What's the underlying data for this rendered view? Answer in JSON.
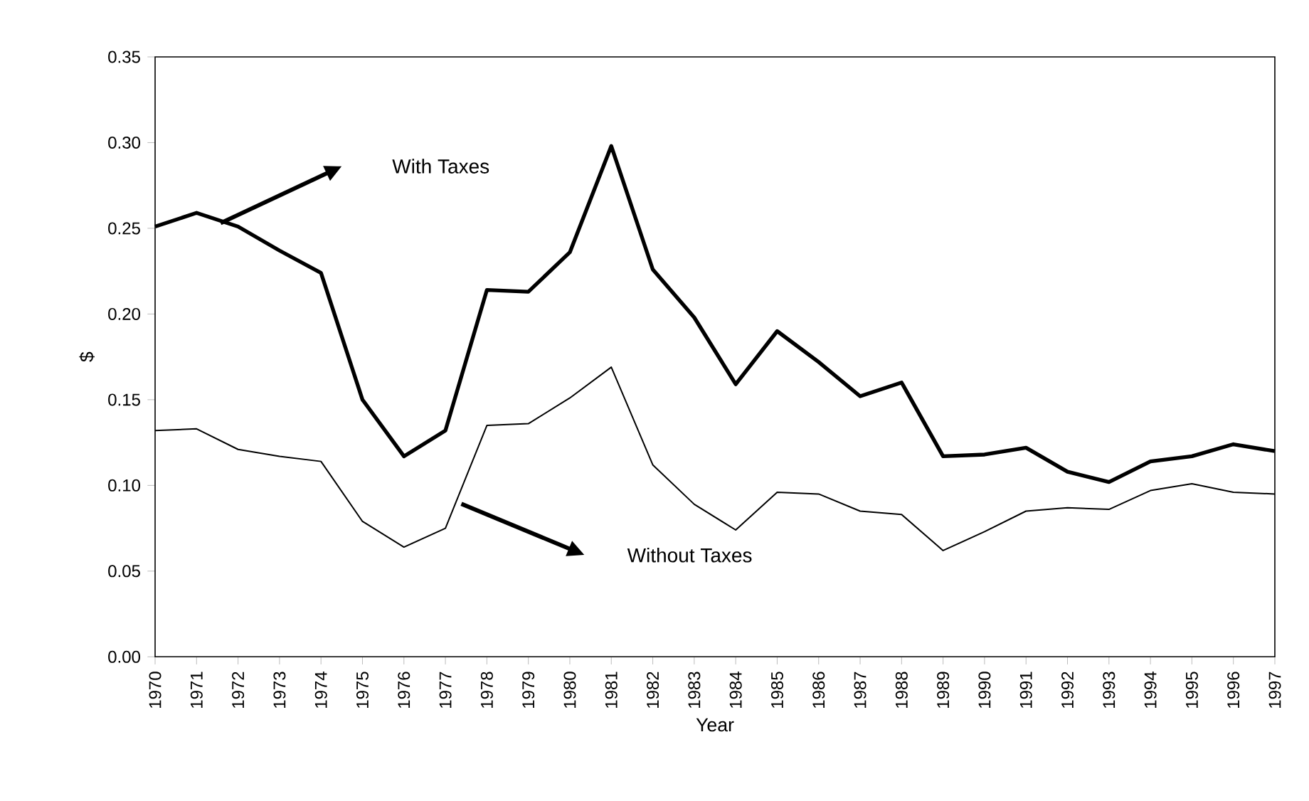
{
  "chart_data": {
    "type": "line",
    "xlabel": "Year",
    "ylabel": "$",
    "categories": [
      "1970",
      "1971",
      "1972",
      "1973",
      "1974",
      "1975",
      "1976",
      "1977",
      "1978",
      "1979",
      "1980",
      "1981",
      "1982",
      "1983",
      "1984",
      "1985",
      "1986",
      "1987",
      "1988",
      "1989",
      "1990",
      "1991",
      "1992",
      "1993",
      "1994",
      "1995",
      "1996",
      "1997"
    ],
    "series": [
      {
        "color": "#000000",
        "values": [
          0.251,
          0.259,
          0.251,
          0.237,
          0.224,
          0.15,
          0.117,
          0.132,
          0.214,
          0.213,
          0.236,
          0.298,
          0.226,
          0.198,
          0.159,
          0.19,
          0.172,
          0.152,
          0.16,
          0.117,
          0.118,
          0.122,
          0.108,
          0.102,
          0.114,
          0.117,
          0.124,
          0.12
        ]
      },
      {
        "color": "#000000",
        "values": [
          0.132,
          0.133,
          0.121,
          0.117,
          0.114,
          0.079,
          0.064,
          0.075,
          0.135,
          0.136,
          0.151,
          0.169,
          0.112,
          0.089,
          0.074,
          0.096,
          0.095,
          0.085,
          0.083,
          0.062,
          0.073,
          0.085,
          0.087,
          0.086,
          0.097,
          0.101,
          0.096,
          0.095
        ]
      }
    ],
    "ylim": [
      0,
      0.35
    ],
    "yticks": [
      {
        "value": 0,
        "label": "0.00"
      },
      {
        "value": 0.05,
        "label": "0.05"
      },
      {
        "value": 0.1,
        "label": "0.10"
      },
      {
        "value": 0.15,
        "label": "0.15"
      },
      {
        "value": 0.2,
        "label": "0.20"
      },
      {
        "value": 0.25,
        "label": "0.25"
      },
      {
        "value": 0.3,
        "label": "0.30"
      },
      {
        "value": 0.35,
        "label": "0.35"
      }
    ],
    "annotations": [
      "With Taxes",
      "Without Taxes"
    ],
    "grid": false,
    "line_style": "solid",
    "marker": "none"
  }
}
